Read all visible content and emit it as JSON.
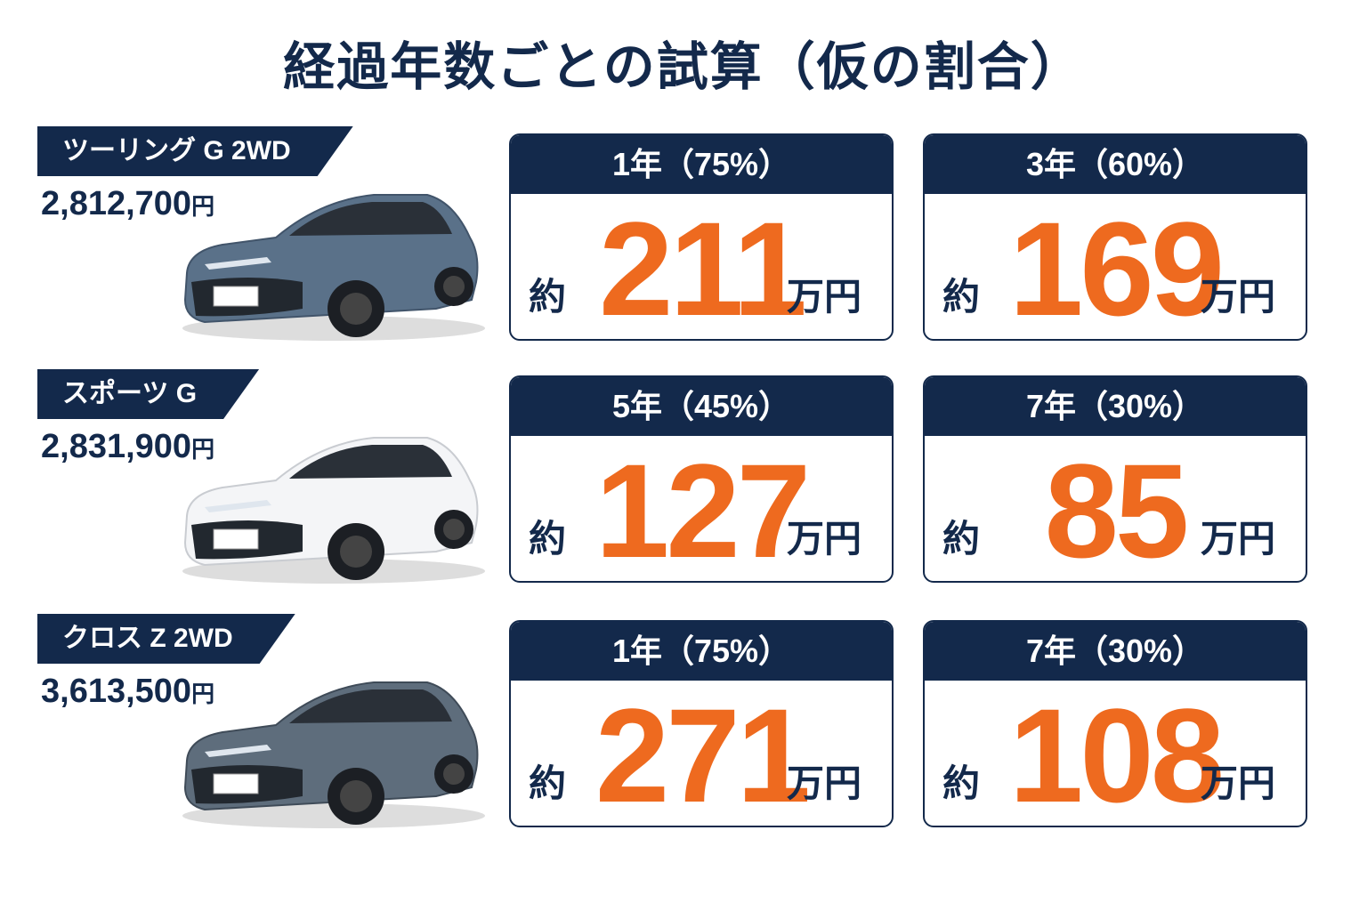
{
  "title": "経過年数ごとの試算（仮の割合）",
  "rows": [
    {
      "model": "ツーリング G 2WD",
      "price": "2,812,700",
      "price_unit": "円",
      "cards": [
        {
          "header": "1年（75%）",
          "prefix": "約",
          "value": "211",
          "unit": "万円"
        },
        {
          "header": "3年（60%）",
          "prefix": "約",
          "value": "169",
          "unit": "万円"
        }
      ]
    },
    {
      "model": "スポーツ G",
      "price": "2,831,900",
      "price_unit": "円",
      "cards": [
        {
          "header": "5年（45%）",
          "prefix": "約",
          "value": "127",
          "unit": "万円"
        },
        {
          "header": "7年（30%）",
          "prefix": "約",
          "value": "85",
          "unit": "万円"
        }
      ]
    },
    {
      "model": "クロス Z 2WD",
      "price": "3,613,500",
      "price_unit": "円",
      "cards": [
        {
          "header": "1年（75%）",
          "prefix": "約",
          "value": "271",
          "unit": "万円"
        },
        {
          "header": "7年（30%）",
          "prefix": "約",
          "value": "108",
          "unit": "万円"
        }
      ]
    }
  ]
}
